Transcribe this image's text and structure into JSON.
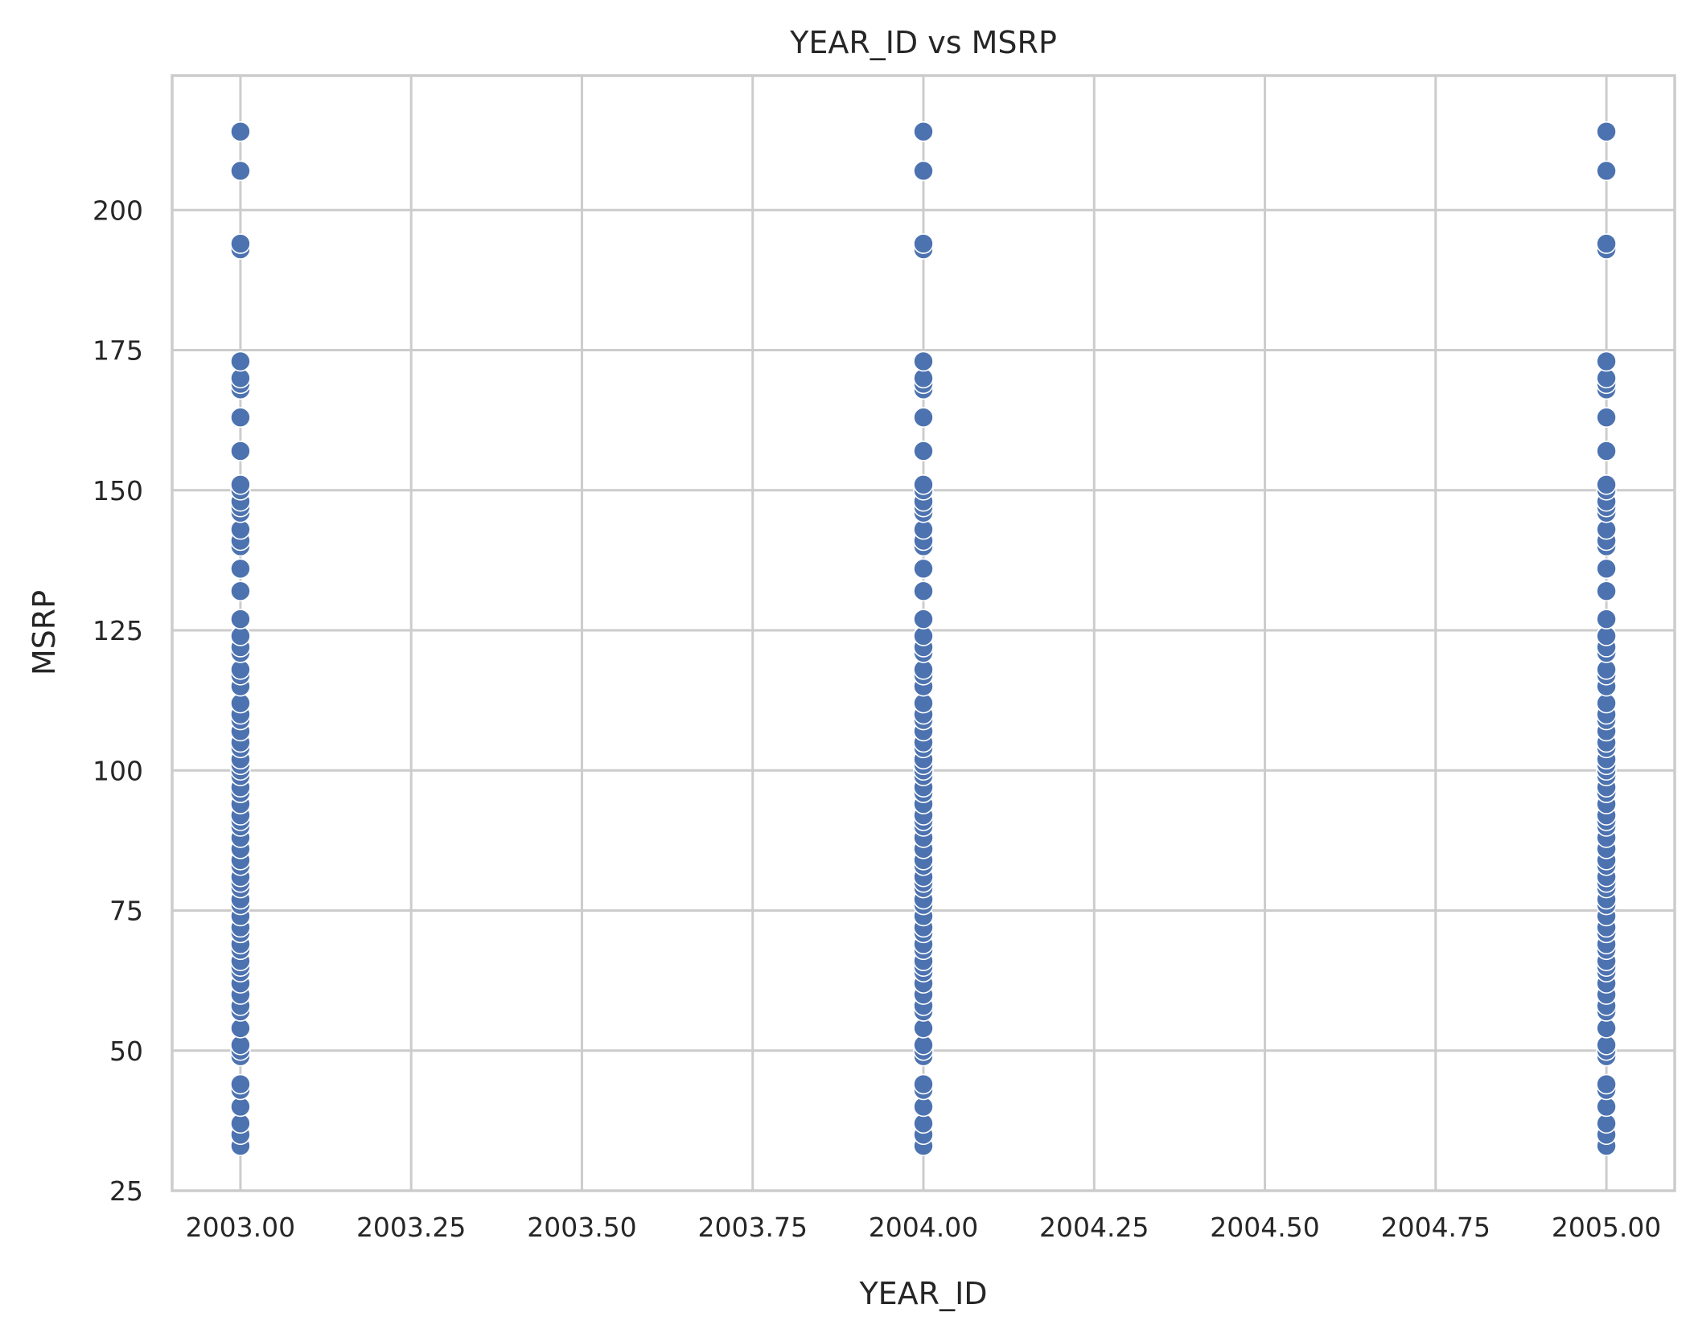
{
  "chart_data": {
    "type": "scatter",
    "title": "YEAR_ID vs MSRP",
    "xlabel": "YEAR_ID",
    "ylabel": "MSRP",
    "xlim": [
      2002.9,
      2005.1
    ],
    "ylim": [
      25,
      224
    ],
    "grid": true,
    "x_ticks": [
      2003.0,
      2003.25,
      2003.5,
      2003.75,
      2004.0,
      2004.25,
      2004.5,
      2004.75,
      2005.0
    ],
    "x_tick_labels": [
      "2003.00",
      "2003.25",
      "2003.50",
      "2003.75",
      "2004.00",
      "2004.25",
      "2004.50",
      "2004.75",
      "2005.00"
    ],
    "y_ticks": [
      25,
      50,
      75,
      100,
      125,
      150,
      175,
      200
    ],
    "y_tick_labels": [
      "25",
      "50",
      "75",
      "100",
      "125",
      "150",
      "175",
      "200"
    ],
    "color": "#4c72b0",
    "x_values": [
      2003,
      2004,
      2005
    ],
    "msrp_values": [
      33,
      35,
      37,
      40,
      43,
      44,
      49,
      50,
      51,
      54,
      57,
      58,
      60,
      62,
      64,
      65,
      66,
      68,
      69,
      71,
      72,
      74,
      76,
      77,
      79,
      80,
      81,
      83,
      84,
      86,
      88,
      90,
      91,
      92,
      94,
      96,
      97,
      99,
      100,
      101,
      102,
      104,
      105,
      107,
      109,
      110,
      112,
      115,
      117,
      118,
      121,
      122,
      124,
      127,
      132,
      136,
      140,
      141,
      143,
      146,
      147,
      148,
      150,
      151,
      157,
      163,
      168,
      169,
      170,
      173,
      193,
      194,
      207,
      214
    ]
  }
}
